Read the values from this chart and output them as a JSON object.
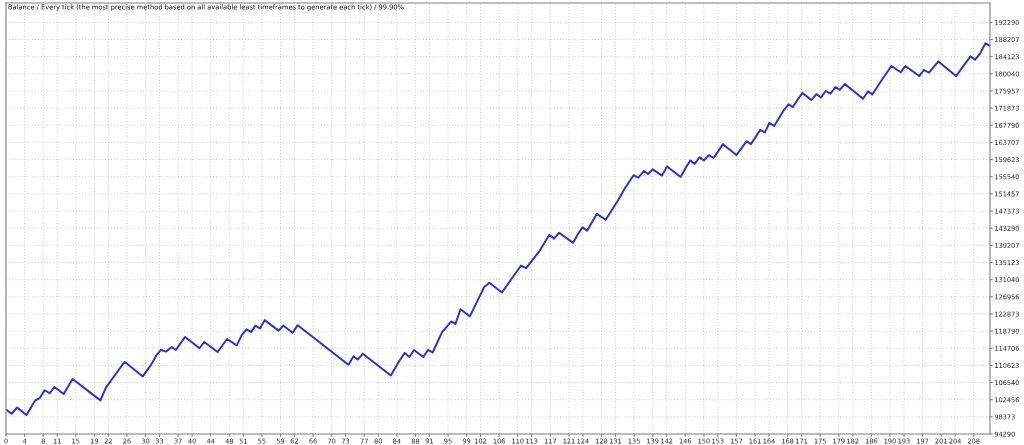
{
  "chart_data": {
    "type": "line",
    "title": "Balance / Every tick (the most precise method based on all available least timeframes to generate each tick) / 99.90%",
    "xlim": [
      0,
      211.5
    ],
    "xticks": [
      0,
      4,
      8,
      11,
      15,
      19,
      22,
      26,
      30,
      33,
      37,
      40,
      44,
      48,
      51,
      55,
      59,
      62,
      66,
      70,
      73,
      77,
      80,
      84,
      88,
      91,
      95,
      99,
      102,
      106,
      110,
      113,
      117,
      121,
      124,
      128,
      131,
      135,
      139,
      142,
      146,
      150,
      153,
      157,
      161,
      164,
      168,
      171,
      175,
      179,
      182,
      186,
      190,
      193,
      197,
      201,
      204,
      208
    ],
    "ylim": [
      94290,
      196900
    ],
    "yticks": [
      94290,
      98373,
      102456,
      106540,
      110623,
      114706,
      118790,
      122873,
      126956,
      131040,
      135123,
      139207,
      143290,
      147373,
      151457,
      155540,
      159623,
      163707,
      167790,
      171873,
      175957,
      180040,
      184123,
      188207,
      192290
    ],
    "grid": true,
    "line_style": "solid",
    "series": [
      {
        "color": "#2f2fcf",
        "x": [
          0,
          1.2,
          2.4,
          4.4,
          6.3,
          7.3,
          8.3,
          9.4,
          10.4,
          12.4,
          14.3,
          20.3,
          21.5,
          25.5,
          29.4,
          31.2,
          32.3,
          33.3,
          34.4,
          35.6,
          36.5,
          38.5,
          41.6,
          42.6,
          45.5,
          47.5,
          49.6,
          50.7,
          51.7,
          52.7,
          53.6,
          54.6,
          55.6,
          58.6,
          59.6,
          61.6,
          62.7,
          73.6,
          74.7,
          75.6,
          76.7,
          82.7,
          84.5,
          85.7,
          86.7,
          87.7,
          89.7,
          90.7,
          91.7,
          93.7,
          95.7,
          96.6,
          97.7,
          99.7,
          102.8,
          103.9,
          106.6,
          110.7,
          111.8,
          114.7,
          116.8,
          117.8,
          118.9,
          121.9,
          123.0,
          123.9,
          124.9,
          127.0,
          128.9,
          131.6,
          133.1,
          134.9,
          135.9,
          137.1,
          138.0,
          139.0,
          141.0,
          142.1,
          145.0,
          146.1,
          147.1,
          148.0,
          149.1,
          150.0,
          151.1,
          152.1,
          154.1,
          157.0,
          159.2,
          160.1,
          161.2,
          162.1,
          163.1,
          164.1,
          165.1,
          167.2,
          168.2,
          169.1,
          170.1,
          171.2,
          173.1,
          174.2,
          175.2,
          176.2,
          177.2,
          178.3,
          179.2,
          180.3,
          184.2,
          185.3,
          186.2,
          188.2,
          190.3,
          192.3,
          193.3,
          196.3,
          197.3,
          198.4,
          200.4,
          204.2,
          207.3,
          208.3,
          209.4,
          210.5,
          211.5
        ],
        "values": [
          100100,
          99100,
          100600,
          98800,
          102300,
          102900,
          104700,
          104000,
          105500,
          103800,
          107400,
          102300,
          105400,
          111500,
          108000,
          110800,
          113000,
          114300,
          113900,
          115000,
          114300,
          117400,
          114700,
          116200,
          113800,
          116900,
          115400,
          117900,
          119200,
          118600,
          120100,
          119400,
          121400,
          118900,
          120100,
          118400,
          120200,
          110800,
          112800,
          112000,
          113400,
          108200,
          111600,
          113600,
          112600,
          114300,
          112600,
          114300,
          113700,
          118500,
          121100,
          120500,
          124000,
          122300,
          129300,
          130300,
          128000,
          134400,
          133800,
          137900,
          141700,
          140800,
          142200,
          139800,
          142000,
          143500,
          142700,
          146700,
          145300,
          150000,
          152900,
          155900,
          155300,
          156900,
          156200,
          157300,
          155800,
          158000,
          155500,
          157700,
          159400,
          158600,
          160200,
          159400,
          160700,
          160000,
          163300,
          160700,
          164000,
          163300,
          165100,
          166700,
          166100,
          168400,
          167600,
          171400,
          172800,
          172100,
          173800,
          175500,
          173800,
          175200,
          174400,
          176000,
          175300,
          176900,
          176200,
          177600,
          174100,
          175900,
          175100,
          178500,
          181900,
          180400,
          181900,
          179500,
          181000,
          180300,
          183000,
          179500,
          184200,
          183400,
          184900,
          187300,
          186700
        ]
      }
    ]
  }
}
